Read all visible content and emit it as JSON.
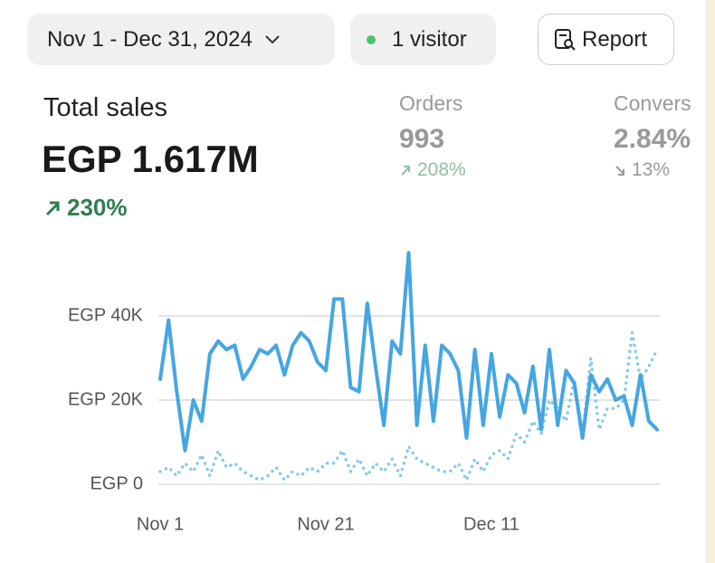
{
  "header": {
    "date_range": "Nov 1 - Dec 31, 2024",
    "visitors": "1 visitor",
    "report": "Report"
  },
  "metrics": [
    {
      "label": "Total sales",
      "value": "EGP 1.617M",
      "change": "230%"
    },
    {
      "label": "Orders",
      "value": "993",
      "change": "208%"
    },
    {
      "label": "Convers",
      "value": "2.84%",
      "change": "13%"
    }
  ],
  "chart_data": {
    "type": "line",
    "categories": [
      "Nov 1",
      null,
      null,
      null,
      null,
      null,
      null,
      null,
      null,
      null,
      null,
      null,
      null,
      null,
      null,
      null,
      null,
      null,
      null,
      null,
      "Nov 21",
      null,
      null,
      null,
      null,
      null,
      null,
      null,
      null,
      null,
      null,
      null,
      null,
      null,
      null,
      null,
      null,
      null,
      null,
      null,
      "Dec 11",
      null,
      null,
      null,
      null,
      null,
      null,
      null,
      null,
      null,
      null,
      null,
      null,
      null,
      null,
      null,
      null,
      null,
      null,
      null,
      null
    ],
    "series": [
      {
        "color": "#45a6e2",
        "style": "solid",
        "values": [
          25000,
          39000,
          22000,
          8000,
          20000,
          15000,
          31000,
          34000,
          32000,
          33000,
          25000,
          28000,
          32000,
          31000,
          33000,
          26000,
          33000,
          36000,
          34000,
          29000,
          27000,
          44000,
          44000,
          23000,
          22000,
          43000,
          28000,
          14000,
          34000,
          31000,
          55000,
          14000,
          33000,
          15000,
          33000,
          31000,
          27000,
          11000,
          32000,
          14000,
          31000,
          16000,
          26000,
          24000,
          17000,
          28000,
          13000,
          32000,
          14000,
          27000,
          24000,
          11000,
          26000,
          22000,
          25000,
          20000,
          21000,
          14000,
          26000,
          15000,
          13000
        ]
      },
      {
        "color": "#86c8ee",
        "style": "dotted",
        "values": [
          3000,
          4000,
          2000,
          5000,
          3000,
          7000,
          2000,
          8000,
          4000,
          5000,
          3000,
          2000,
          1000,
          2000,
          4000,
          1000,
          3000,
          2000,
          4000,
          3000,
          5000,
          5000,
          8000,
          3000,
          6000,
          2000,
          5000,
          3000,
          6000,
          2000,
          9000,
          6000,
          5000,
          4000,
          3000,
          3000,
          5000,
          1000,
          6000,
          3000,
          7000,
          8000,
          6000,
          12000,
          10000,
          15000,
          12000,
          20000,
          18000,
          15000,
          25000,
          12000,
          30000,
          13000,
          18000,
          18000,
          20000,
          36000,
          25000,
          28000,
          32000
        ]
      }
    ],
    "ylim": [
      0,
      60000
    ],
    "yticks": [
      {
        "value": 0,
        "label": "EGP 0"
      },
      {
        "value": 20000,
        "label": "EGP 20K"
      },
      {
        "value": 40000,
        "label": "EGP 40K"
      }
    ],
    "grid": true
  }
}
